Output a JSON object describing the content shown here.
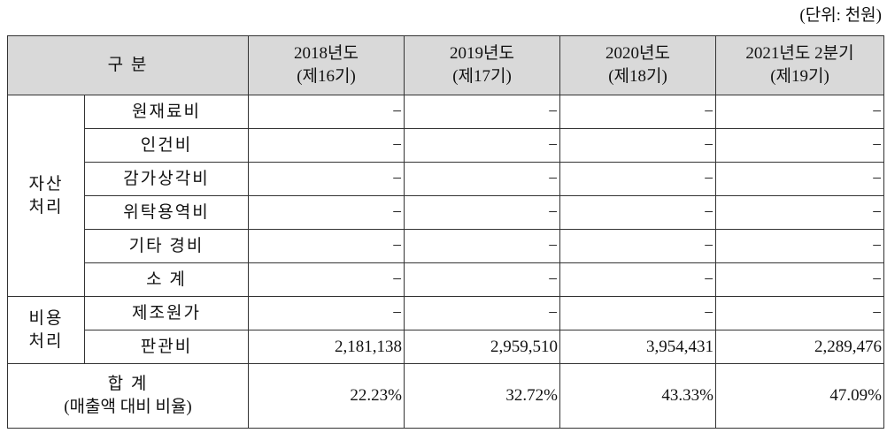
{
  "unit_note": "(단위: 천원)",
  "table": {
    "header": {
      "label": "구 분",
      "columns": [
        {
          "year": "2018년도",
          "period": "(제16기)"
        },
        {
          "year": "2019년도",
          "period": "(제17기)"
        },
        {
          "year": "2020년도",
          "period": "(제18기)"
        },
        {
          "year": "2021년도 2분기",
          "period": "(제19기)"
        }
      ]
    },
    "groups": [
      {
        "label": [
          "자산",
          "처리"
        ],
        "rows": [
          {
            "label": "원재료비",
            "values": [
              "−",
              "−",
              "−",
              "−"
            ]
          },
          {
            "label": "인건비",
            "values": [
              "−",
              "−",
              "−",
              "−"
            ]
          },
          {
            "label": "감가상각비",
            "values": [
              "−",
              "−",
              "−",
              "−"
            ]
          },
          {
            "label": "위탁용역비",
            "values": [
              "−",
              "−",
              "−",
              "−"
            ]
          },
          {
            "label": "기타 경비",
            "values": [
              "−",
              "−",
              "−",
              "−"
            ]
          },
          {
            "label": "소 계",
            "values": [
              "−",
              "−",
              "−",
              "−"
            ]
          }
        ]
      },
      {
        "label": [
          "비용",
          "처리"
        ],
        "rows": [
          {
            "label": "제조원가",
            "values": [
              "−",
              "−",
              "−",
              "−"
            ]
          },
          {
            "label": "판관비",
            "values": [
              "2,181,138",
              "2,959,510",
              "3,954,431",
              "2,289,476"
            ]
          }
        ]
      }
    ],
    "total": {
      "label": "합 계",
      "sub": "(매출액 대비 비율)",
      "values": [
        "22.23%",
        "32.72%",
        "43.33%",
        "47.09%"
      ]
    }
  }
}
